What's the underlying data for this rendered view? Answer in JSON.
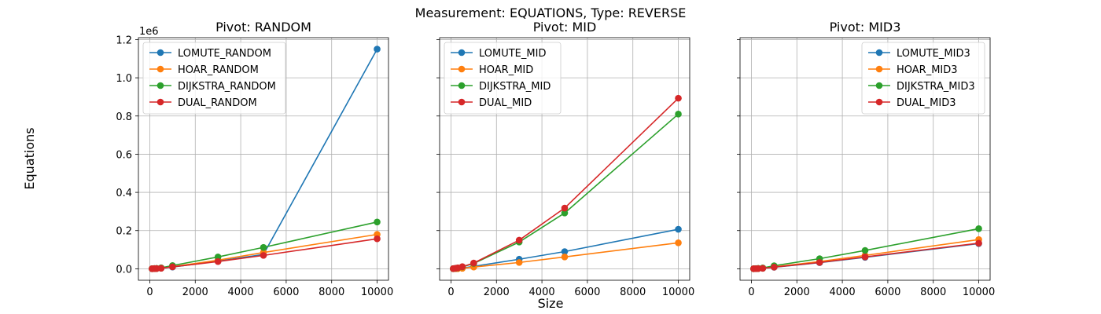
{
  "figure": {
    "suptitle": "Measurement: EQUATIONS, Type: REVERSE",
    "xlabel": "Size",
    "ylabel": "Equations",
    "y_offset_text": "1e6"
  },
  "colors": {
    "LOMUTE": "#1f77b4",
    "HOAR": "#ff7f0e",
    "DIJKSTRA": "#2ca02c",
    "DUAL": "#d62728"
  },
  "chart_data": [
    {
      "type": "line",
      "title": "Pivot: RANDOM",
      "xlim": [
        -500,
        10500
      ],
      "ylim": [
        -60000,
        1210000
      ],
      "xticks": [
        0,
        2000,
        4000,
        6000,
        8000,
        10000
      ],
      "yticks": [
        0,
        200000,
        400000,
        600000,
        800000,
        1000000,
        1200000
      ],
      "ytick_labels": [
        "0.0",
        "0.2",
        "0.4",
        "0.6",
        "0.8",
        "1.0",
        "1.2"
      ],
      "grid": true,
      "legend_position": "upper-left",
      "x": [
        100,
        200,
        300,
        500,
        1000,
        3000,
        5000,
        10000
      ],
      "series": [
        {
          "name": "LOMUTE_RANDOM",
          "color_key": "LOMUTE",
          "values": [
            200,
            600,
            1200,
            3000,
            9000,
            40000,
            75000,
            1150000
          ]
        },
        {
          "name": "HOAR_RANDOM",
          "color_key": "HOAR",
          "values": [
            300,
            800,
            1500,
            3500,
            11000,
            45000,
            85000,
            180000
          ]
        },
        {
          "name": "DIJKSTRA_RANDOM",
          "color_key": "DIJKSTRA",
          "values": [
            400,
            1200,
            2200,
            5000,
            17000,
            62000,
            112000,
            245000
          ]
        },
        {
          "name": "DUAL_RANDOM",
          "color_key": "DUAL",
          "values": [
            250,
            700,
            1300,
            3000,
            10000,
            38000,
            70000,
            157000
          ]
        }
      ]
    },
    {
      "type": "line",
      "title": "Pivot: MID",
      "xlim": [
        -500,
        10500
      ],
      "ylim": [
        -60000,
        1210000
      ],
      "xticks": [
        0,
        2000,
        4000,
        6000,
        8000,
        10000
      ],
      "yticks": [
        0,
        200000,
        400000,
        600000,
        800000,
        1000000,
        1200000
      ],
      "ytick_labels": [],
      "grid": true,
      "legend_position": "upper-left",
      "x": [
        100,
        200,
        300,
        500,
        1000,
        3000,
        5000,
        10000
      ],
      "series": [
        {
          "name": "LOMUTE_MID",
          "color_key": "LOMUTE",
          "values": [
            300,
            900,
            1600,
            3500,
            13000,
            50000,
            90000,
            207000
          ]
        },
        {
          "name": "HOAR_MID",
          "color_key": "HOAR",
          "values": [
            200,
            600,
            1000,
            2500,
            9000,
            33000,
            62000,
            136000
          ]
        },
        {
          "name": "DIJKSTRA_MID",
          "color_key": "DIJKSTRA",
          "values": [
            800,
            2500,
            4500,
            10000,
            28000,
            140000,
            292000,
            810000
          ]
        },
        {
          "name": "DUAL_MID",
          "color_key": "DUAL",
          "values": [
            900,
            2800,
            5000,
            11000,
            30000,
            150000,
            318000,
            893000
          ]
        }
      ]
    },
    {
      "type": "line",
      "title": "Pivot: MID3",
      "xlim": [
        -500,
        10500
      ],
      "ylim": [
        -60000,
        1210000
      ],
      "xticks": [
        0,
        2000,
        4000,
        6000,
        8000,
        10000
      ],
      "yticks": [
        0,
        200000,
        400000,
        600000,
        800000,
        1000000,
        1200000
      ],
      "ytick_labels": [],
      "grid": true,
      "legend_position": "upper-right",
      "x": [
        100,
        200,
        300,
        500,
        1000,
        3000,
        5000,
        10000
      ],
      "series": [
        {
          "name": "LOMUTE_MID3",
          "color_key": "LOMUTE",
          "values": [
            200,
            600,
            1100,
            2500,
            8000,
            32000,
            60000,
            132000
          ]
        },
        {
          "name": "HOAR_MID3",
          "color_key": "HOAR",
          "values": [
            250,
            700,
            1300,
            3000,
            10000,
            38000,
            70000,
            153000
          ]
        },
        {
          "name": "DIJKSTRA_MID3",
          "color_key": "DIJKSTRA",
          "values": [
            400,
            1100,
            2000,
            4500,
            16000,
            53000,
            96000,
            210000
          ]
        },
        {
          "name": "DUAL_MID3",
          "color_key": "DUAL",
          "values": [
            200,
            600,
            1100,
            2600,
            8500,
            33000,
            62000,
            134000
          ]
        }
      ]
    }
  ]
}
